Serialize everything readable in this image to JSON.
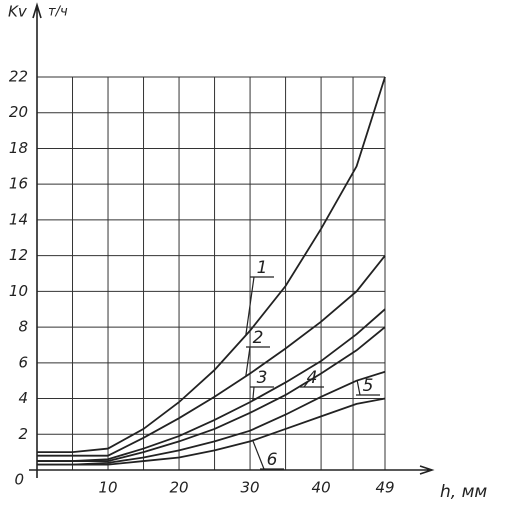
{
  "chart_data": {
    "type": "line",
    "y_label": "Kv",
    "y_unit": "т/ч",
    "x_label": "h, мм",
    "xlim": [
      0,
      49
    ],
    "xticks": [
      10,
      20,
      30,
      40,
      49
    ],
    "ylim": [
      0,
      22
    ],
    "yticks": [
      0,
      2,
      4,
      6,
      8,
      10,
      12,
      14,
      16,
      18,
      20,
      22
    ],
    "grid": true,
    "x": [
      0,
      5,
      10,
      15,
      20,
      25,
      30,
      35,
      40,
      45,
      49
    ],
    "series": [
      {
        "name": "1",
        "color": "#222222",
        "values": [
          1.0,
          1.0,
          1.2,
          2.3,
          3.8,
          5.6,
          7.8,
          10.3,
          13.5,
          17.0,
          22.0
        ]
      },
      {
        "name": "2",
        "color": "#222222",
        "values": [
          0.8,
          0.8,
          0.8,
          1.8,
          2.9,
          4.1,
          5.4,
          6.8,
          8.3,
          10.0,
          12.0
        ]
      },
      {
        "name": "3",
        "color": "#222222",
        "values": [
          0.5,
          0.5,
          0.6,
          1.2,
          1.9,
          2.8,
          3.8,
          4.9,
          6.1,
          7.6,
          9.0
        ]
      },
      {
        "name": "4",
        "color": "#222222",
        "values": [
          0.5,
          0.5,
          0.5,
          1.0,
          1.6,
          2.3,
          3.2,
          4.2,
          5.4,
          6.7,
          8.0
        ]
      },
      {
        "name": "5",
        "color": "#222222",
        "values": [
          0.3,
          0.3,
          0.4,
          0.7,
          1.1,
          1.6,
          2.2,
          3.1,
          4.1,
          5.0,
          5.5
        ]
      },
      {
        "name": "6",
        "color": "#222222",
        "values": [
          0.3,
          0.3,
          0.3,
          0.5,
          0.7,
          1.1,
          1.6,
          2.3,
          3.0,
          3.7,
          4.0
        ]
      }
    ]
  }
}
